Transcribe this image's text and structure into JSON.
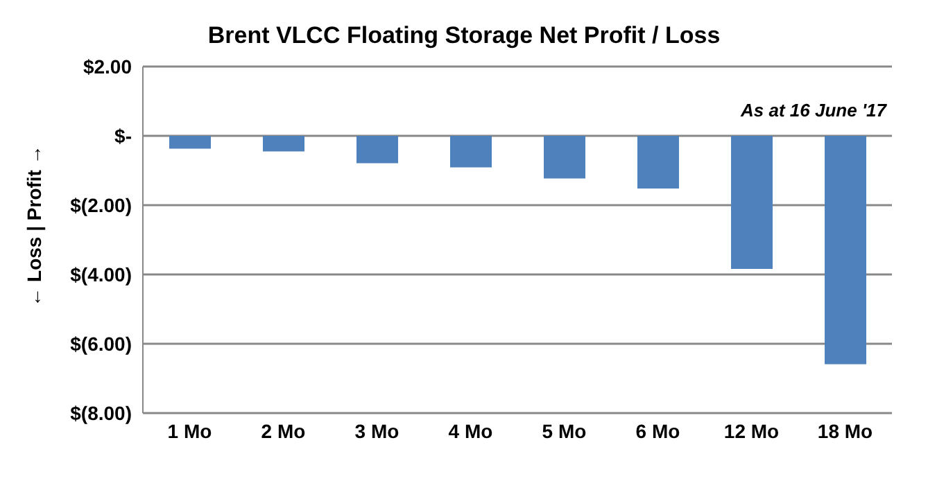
{
  "chart_data": {
    "type": "bar",
    "title": "Brent VLCC Floating Storage Net Profit / Loss",
    "ylabel": "← Loss  |  Profit →",
    "annotations": [
      "As at 16 June '17"
    ],
    "categories": [
      "1 Mo",
      "2 Mo",
      "3 Mo",
      "4 Mo",
      "5 Mo",
      "6 Mo",
      "12 Mo",
      "18 Mo"
    ],
    "values": [
      -0.37,
      -0.45,
      -0.79,
      -0.91,
      -1.23,
      -1.52,
      -3.84,
      -6.59
    ],
    "color": "#4f81bd",
    "ylim": [
      -8,
      2
    ],
    "yticks": [
      {
        "value": -8,
        "label": "$(8.00)"
      },
      {
        "value": -6,
        "label": "$(6.00)"
      },
      {
        "value": -4,
        "label": "$(4.00)"
      },
      {
        "value": -2,
        "label": "$(2.00)"
      },
      {
        "value": 0,
        "label": "$-"
      },
      {
        "value": 2,
        "label": "$2.00"
      }
    ],
    "grid": "y",
    "legend": false
  }
}
